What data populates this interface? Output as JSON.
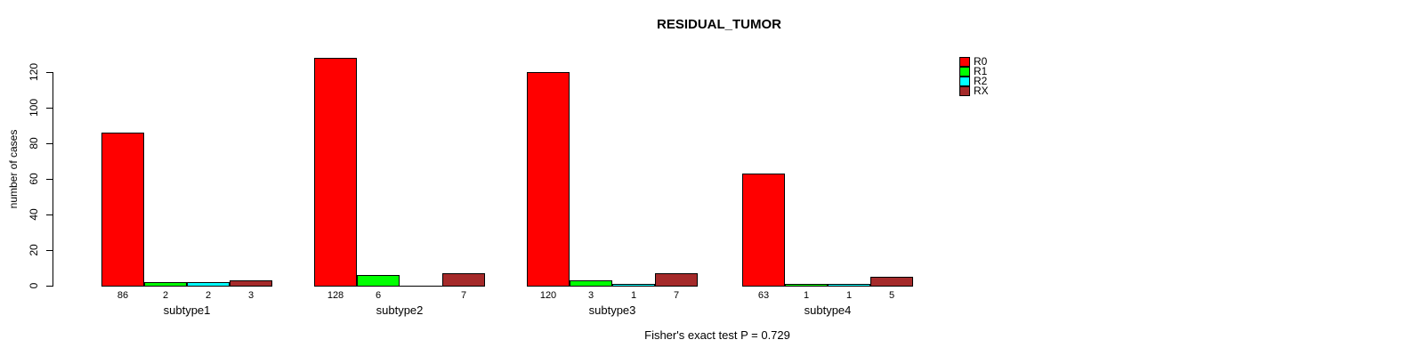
{
  "chart_data": {
    "type": "bar",
    "title": "RESIDUAL_TUMOR",
    "xlabel": "",
    "ylabel": "number of cases",
    "categories": [
      "subtype1",
      "subtype2",
      "subtype3",
      "subtype4"
    ],
    "series": [
      {
        "name": "R0",
        "color": "#FF0000",
        "values": [
          86,
          128,
          120,
          63
        ]
      },
      {
        "name": "R1",
        "color": "#00FF00",
        "values": [
          2,
          6,
          3,
          1
        ]
      },
      {
        "name": "R2",
        "color": "#00FFFF",
        "values": [
          2,
          0,
          1,
          1
        ]
      },
      {
        "name": "RX",
        "color": "#A52A2A",
        "values": [
          3,
          7,
          7,
          5
        ]
      }
    ],
    "yticks": [
      0,
      20,
      40,
      60,
      80,
      100,
      120
    ],
    "ylim": [
      0,
      120
    ],
    "grid": false,
    "bar_value_labels": true,
    "hide_zero_value_labels": true,
    "legend_position": "top-right",
    "annotation": "Fisher's exact test P = 0.729",
    "axis_color": "#000000",
    "background_color": "#FFFFFF"
  }
}
